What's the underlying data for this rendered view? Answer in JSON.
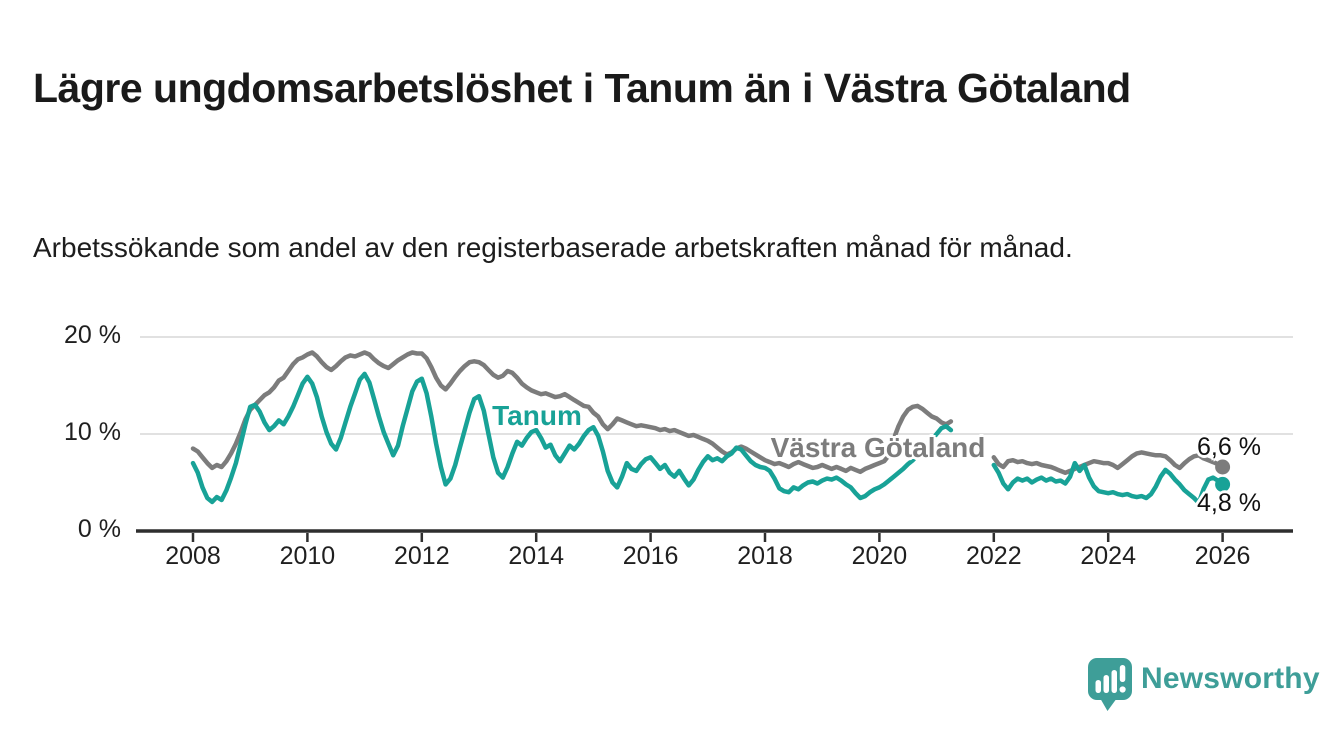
{
  "header": {
    "title": "Lägre ungdomsarbetslöshet i Tanum än i Västra Götaland",
    "subtitle": "Arbetssökande som andel av den registerbaserade arbetskraften månad för månad."
  },
  "footer": {
    "brand": "Newsworthy",
    "brand_color": "#3e9e98",
    "logo_icon": "newsworthy-speech-bubble-bar-chart-icon"
  },
  "colors": {
    "tanum_line": "#18a297",
    "vastra_gotaland_line": "#7c7c7c",
    "gridline": "#e1e1e1",
    "axis": "#2e2e2e",
    "text": "#1a1a1a"
  },
  "chart_data": {
    "type": "line",
    "title": "Lägre ungdomsarbetslöshet i Tanum än i Västra Götaland",
    "subtitle": "Arbetssökande som andel av den registerbaserade arbetskraften månad för månad.",
    "unit": "%",
    "interval": "monthly",
    "start": {
      "year": 2008,
      "month": 1
    },
    "end": {
      "year": 2026,
      "month": 1
    },
    "data_gap_months": "2021-05 through 2021-12 (no values, visible break in both lines)",
    "ylim": [
      0,
      21
    ],
    "grid": "horizontal",
    "y_ticks": [
      {
        "value": 0,
        "label": "0 %"
      },
      {
        "value": 10,
        "label": "10 %"
      },
      {
        "value": 20,
        "label": "20 %"
      }
    ],
    "x_ticks": [
      {
        "year": 2008,
        "label": "2008"
      },
      {
        "year": 2010,
        "label": "2010"
      },
      {
        "year": 2012,
        "label": "2012"
      },
      {
        "year": 2014,
        "label": "2014"
      },
      {
        "year": 2016,
        "label": "2016"
      },
      {
        "year": 2018,
        "label": "2018"
      },
      {
        "year": 2020,
        "label": "2020"
      },
      {
        "year": 2022,
        "label": "2022"
      },
      {
        "year": 2024,
        "label": "2024"
      },
      {
        "year": 2026,
        "label": "2026"
      }
    ],
    "series": [
      {
        "name": "Västra Götaland",
        "color": "#7c7c7c",
        "end_label": "6,6 %",
        "end_value": 6.6,
        "values": [
          8.5,
          8.2,
          7.6,
          7.0,
          6.5,
          6.8,
          6.6,
          7.2,
          8.0,
          9.0,
          10.2,
          11.5,
          12.5,
          13.0,
          13.5,
          14.0,
          14.3,
          14.8,
          15.5,
          15.8,
          16.5,
          17.2,
          17.7,
          17.9,
          18.2,
          18.4,
          18.0,
          17.4,
          16.9,
          16.6,
          17.0,
          17.5,
          17.9,
          18.1,
          18.0,
          18.2,
          18.4,
          18.2,
          17.7,
          17.3,
          17.0,
          16.8,
          17.2,
          17.6,
          17.9,
          18.2,
          18.4,
          18.3,
          18.3,
          17.8,
          16.9,
          15.8,
          15.0,
          14.6,
          15.2,
          15.9,
          16.5,
          17.0,
          17.4,
          17.5,
          17.4,
          17.1,
          16.6,
          16.1,
          15.8,
          16.0,
          16.5,
          16.3,
          15.8,
          15.2,
          14.8,
          14.5,
          14.3,
          14.1,
          14.2,
          14.0,
          13.8,
          13.9,
          14.1,
          13.8,
          13.5,
          13.2,
          12.9,
          12.8,
          12.2,
          11.8,
          11.0,
          10.5,
          11.0,
          11.6,
          11.4,
          11.2,
          11.0,
          10.8,
          10.9,
          10.8,
          10.7,
          10.6,
          10.4,
          10.5,
          10.3,
          10.4,
          10.2,
          10.0,
          9.8,
          9.9,
          9.7,
          9.5,
          9.3,
          9.0,
          8.6,
          8.2,
          7.9,
          8.1,
          8.5,
          8.7,
          8.5,
          8.2,
          7.9,
          7.6,
          7.3,
          7.1,
          6.9,
          7.0,
          6.8,
          6.6,
          6.9,
          7.1,
          6.9,
          6.7,
          6.5,
          6.6,
          6.8,
          6.6,
          6.4,
          6.6,
          6.4,
          6.2,
          6.5,
          6.3,
          6.1,
          6.4,
          6.6,
          6.8,
          7.0,
          7.2,
          7.8,
          9.5,
          10.8,
          11.8,
          12.5,
          12.8,
          12.9,
          12.6,
          12.2,
          11.8,
          11.6,
          11.2,
          11.0,
          11.3,
          null,
          null,
          null,
          null,
          null,
          null,
          null,
          null,
          7.6,
          6.9,
          6.6,
          7.2,
          7.3,
          7.1,
          7.2,
          7.0,
          6.9,
          7.0,
          6.8,
          6.7,
          6.6,
          6.4,
          6.2,
          6.0,
          6.2,
          6.4,
          6.6,
          6.8,
          7.0,
          7.2,
          7.1,
          7.0,
          7.0,
          6.8,
          6.5,
          6.9,
          7.3,
          7.7,
          8.0,
          8.1,
          8.0,
          7.9,
          7.8,
          7.8,
          7.7,
          7.3,
          6.8,
          6.5,
          7.0,
          7.4,
          7.7,
          7.8,
          7.5,
          7.3,
          7.1,
          6.9,
          6.6
        ]
      },
      {
        "name": "Tanum",
        "color": "#18a297",
        "end_label": "4,8 %",
        "end_value": 4.8,
        "values": [
          7.0,
          6.0,
          4.5,
          3.4,
          3.0,
          3.5,
          3.2,
          4.2,
          5.5,
          7.0,
          9.0,
          11.0,
          12.8,
          13.0,
          12.3,
          11.2,
          10.4,
          10.8,
          11.4,
          11.0,
          11.8,
          12.8,
          14.0,
          15.2,
          15.9,
          15.2,
          13.8,
          11.8,
          10.2,
          9.0,
          8.4,
          9.6,
          11.2,
          12.8,
          14.2,
          15.6,
          16.2,
          15.3,
          13.6,
          11.8,
          10.2,
          9.0,
          7.8,
          8.8,
          10.8,
          12.6,
          14.4,
          15.4,
          15.7,
          14.2,
          11.8,
          9.0,
          6.6,
          4.8,
          5.4,
          6.8,
          8.6,
          10.4,
          12.2,
          13.6,
          13.9,
          12.4,
          10.0,
          7.6,
          6.0,
          5.5,
          6.6,
          8.0,
          9.2,
          8.8,
          9.6,
          10.2,
          10.4,
          9.6,
          8.6,
          8.9,
          7.8,
          7.2,
          8.0,
          8.8,
          8.4,
          9.0,
          9.8,
          10.4,
          10.7,
          9.8,
          8.2,
          6.2,
          5.0,
          4.5,
          5.6,
          7.0,
          6.4,
          6.2,
          6.9,
          7.4,
          7.6,
          7.0,
          6.4,
          6.8,
          6.0,
          5.6,
          6.2,
          5.4,
          4.7,
          5.3,
          6.3,
          7.1,
          7.7,
          7.3,
          7.5,
          7.2,
          7.7,
          8.0,
          8.6,
          8.4,
          7.8,
          7.2,
          6.8,
          6.6,
          6.5,
          6.2,
          5.4,
          4.4,
          4.1,
          4.0,
          4.5,
          4.3,
          4.7,
          5.0,
          5.1,
          4.9,
          5.2,
          5.4,
          5.3,
          5.5,
          5.2,
          4.8,
          4.5,
          3.9,
          3.4,
          3.6,
          4.0,
          4.3,
          4.5,
          4.8,
          5.2,
          5.6,
          6.0,
          6.4,
          6.9,
          7.3,
          7.8,
          8.3,
          8.9,
          9.4,
          10.0,
          10.6,
          10.8,
          10.4,
          null,
          null,
          null,
          null,
          null,
          null,
          null,
          null,
          6.8,
          6.0,
          4.9,
          4.3,
          5.0,
          5.4,
          5.2,
          5.4,
          5.0,
          5.3,
          5.5,
          5.2,
          5.4,
          5.1,
          5.2,
          4.9,
          5.6,
          7.0,
          6.2,
          6.8,
          5.5,
          4.6,
          4.1,
          4.0,
          3.9,
          4.0,
          3.8,
          3.7,
          3.8,
          3.6,
          3.5,
          3.6,
          3.4,
          3.8,
          4.6,
          5.6,
          6.3,
          5.9,
          5.3,
          4.8,
          4.2,
          3.8,
          3.4,
          2.9,
          4.3,
          5.3,
          5.5,
          5.2,
          4.8
        ]
      }
    ]
  }
}
